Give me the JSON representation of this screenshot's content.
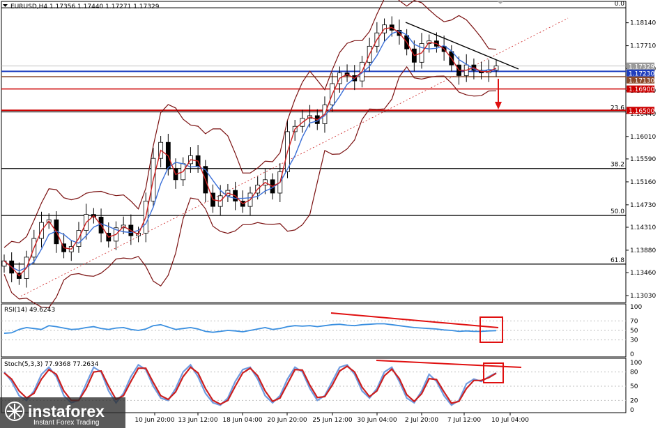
{
  "header": {
    "text": "EURUSD,H4  1.17356 1.17440 1.17271 1.17329"
  },
  "main_price_axis": {
    "ticks": [
      "1.18140",
      "1.17710",
      "1.17280",
      "1.16870",
      "1.16440",
      "1.16010",
      "1.15590",
      "1.15160",
      "1.14730",
      "1.14310",
      "1.13880",
      "1.13460",
      "1.13030"
    ],
    "price_labels": [
      {
        "text": "1.17329",
        "color": "#9a9a9a"
      },
      {
        "text": "1.17230",
        "color": "#1f3fbf"
      },
      {
        "text": "1.17130",
        "color": "#8b4a2b"
      },
      {
        "text": "1.16900",
        "color": "#cc0000"
      },
      {
        "text": "1.16500",
        "color": "#cc0000"
      }
    ]
  },
  "fibo_levels": [
    "0.0",
    "23.6",
    "38.2",
    "50.0",
    "61.8"
  ],
  "rsi": {
    "label": "RSI(14) 49.6243",
    "ticks": [
      "100",
      "70",
      "50",
      "30",
      "0"
    ]
  },
  "stoch": {
    "label": "Stoch(5,3,3) 77.9368 77.2634",
    "ticks": [
      "100",
      "80",
      "50",
      "20",
      "0"
    ]
  },
  "time_axis": [
    "10 Jun 20:00",
    "13 Jun 12:00",
    "18 Jun 04:00",
    "20 Jun 20:00",
    "25 Jun 12:00",
    "30 Jun 04:00",
    "2 Jul 20:00",
    "7 Jul 12:00",
    "10 Jul 04:00"
  ],
  "watermark": {
    "brand": "instaforex",
    "tagline": "Instant Forex Trading"
  },
  "colors": {
    "candles": "#000000",
    "bands": "#7a1010",
    "ma_fast": "#cc1f1f",
    "ma_slow": "#3a6fd8",
    "rsi_line": "#3a8fe0",
    "stoch_main": "#6f9be0",
    "stoch_signal": "#cc1f1f",
    "annotation": "#e01010",
    "level_red": "#cc0000",
    "level_blue": "#1f3fbf",
    "level_brown": "#8b4a2b"
  },
  "chart_data": [
    {
      "type": "candlestick",
      "title": "EURUSD,H4",
      "ohlc_last": {
        "open": 1.17356,
        "high": 1.1744,
        "low": 1.17271,
        "close": 1.17329
      },
      "y_range": [
        1.129,
        1.1854
      ],
      "x_categories": [
        "10 Jun 20:00",
        "13 Jun 12:00",
        "18 Jun 04:00",
        "20 Jun 20:00",
        "25 Jun 12:00",
        "30 Jun 04:00",
        "2 Jul 20:00",
        "7 Jul 12:00",
        "10 Jul 04:00"
      ],
      "close_path": [
        1.1368,
        1.1345,
        1.1335,
        1.1375,
        1.141,
        1.144,
        1.1445,
        1.14,
        1.1385,
        1.1395,
        1.1425,
        1.1455,
        1.145,
        1.142,
        1.1405,
        1.143,
        1.1435,
        1.1415,
        1.142,
        1.148,
        1.156,
        1.159,
        1.154,
        1.152,
        1.155,
        1.1565,
        1.1545,
        1.1495,
        1.147,
        1.149,
        1.15,
        1.148,
        1.147,
        1.1495,
        1.151,
        1.152,
        1.1495,
        1.1535,
        1.161,
        1.162,
        1.1635,
        1.164,
        1.1625,
        1.166,
        1.17,
        1.172,
        1.1715,
        1.1705,
        1.174,
        1.177,
        1.1795,
        1.181,
        1.18,
        1.179,
        1.1765,
        1.174,
        1.1775,
        1.178,
        1.177,
        1.176,
        1.1735,
        1.1715,
        1.1735,
        1.1725,
        1.172,
        1.1725,
        1.1733
      ],
      "levels": [
        1.17329,
        1.1723,
        1.1713,
        1.169,
        1.165
      ],
      "fibonacci": [
        {
          "level": "0.0",
          "price": 1.1842
        },
        {
          "level": "23.6",
          "price": 1.1647
        },
        {
          "level": "38.2",
          "price": 1.1541
        },
        {
          "level": "50.0",
          "price": 1.1453
        },
        {
          "level": "61.8",
          "price": 1.1362
        }
      ]
    },
    {
      "type": "line",
      "title": "RSI(14) 49.6243",
      "ylim": [
        0,
        100
      ],
      "series": [
        {
          "values": [
            44,
            45,
            52,
            56,
            54,
            52,
            60,
            58,
            55,
            52,
            53,
            56,
            58,
            54,
            52,
            55,
            56,
            52,
            50,
            53,
            60,
            62,
            57,
            52,
            54,
            56,
            53,
            48,
            46,
            48,
            50,
            49,
            47,
            50,
            53,
            56,
            52,
            54,
            58,
            60,
            59,
            60,
            58,
            60,
            62,
            63,
            61,
            60,
            62,
            63,
            64,
            64,
            62,
            60,
            58,
            56,
            55,
            54,
            53,
            51,
            50,
            48,
            49,
            48,
            48,
            49,
            49.6
          ]
        }
      ]
    },
    {
      "type": "line",
      "title": "Stoch(5,3,3) 77.9368 77.2634",
      "ylim": [
        0,
        100
      ],
      "series": [
        {
          "values": [
            80,
            60,
            30,
            20,
            40,
            75,
            90,
            70,
            30,
            15,
            20,
            55,
            90,
            80,
            40,
            15,
            35,
            70,
            95,
            85,
            50,
            25,
            20,
            45,
            80,
            95,
            70,
            35,
            15,
            10,
            25,
            60,
            85,
            90,
            65,
            30,
            15,
            30,
            65,
            90,
            80,
            45,
            20,
            30,
            60,
            90,
            95,
            75,
            40,
            25,
            45,
            80,
            90,
            60,
            25,
            15,
            40,
            75,
            60,
            30,
            10,
            20,
            55,
            65,
            60,
            70,
            77.9
          ]
        },
        {
          "values": [
            78,
            65,
            40,
            25,
            35,
            65,
            85,
            75,
            40,
            20,
            20,
            45,
            80,
            82,
            50,
            22,
            30,
            60,
            88,
            88,
            58,
            30,
            22,
            38,
            70,
            90,
            78,
            45,
            20,
            12,
            20,
            50,
            78,
            88,
            72,
            40,
            18,
            25,
            55,
            85,
            84,
            52,
            26,
            28,
            52,
            82,
            92,
            80,
            48,
            28,
            40,
            72,
            86,
            66,
            32,
            18,
            34,
            66,
            64,
            38,
            14,
            18,
            45,
            62,
            62,
            68,
            77.3
          ]
        }
      ]
    }
  ]
}
